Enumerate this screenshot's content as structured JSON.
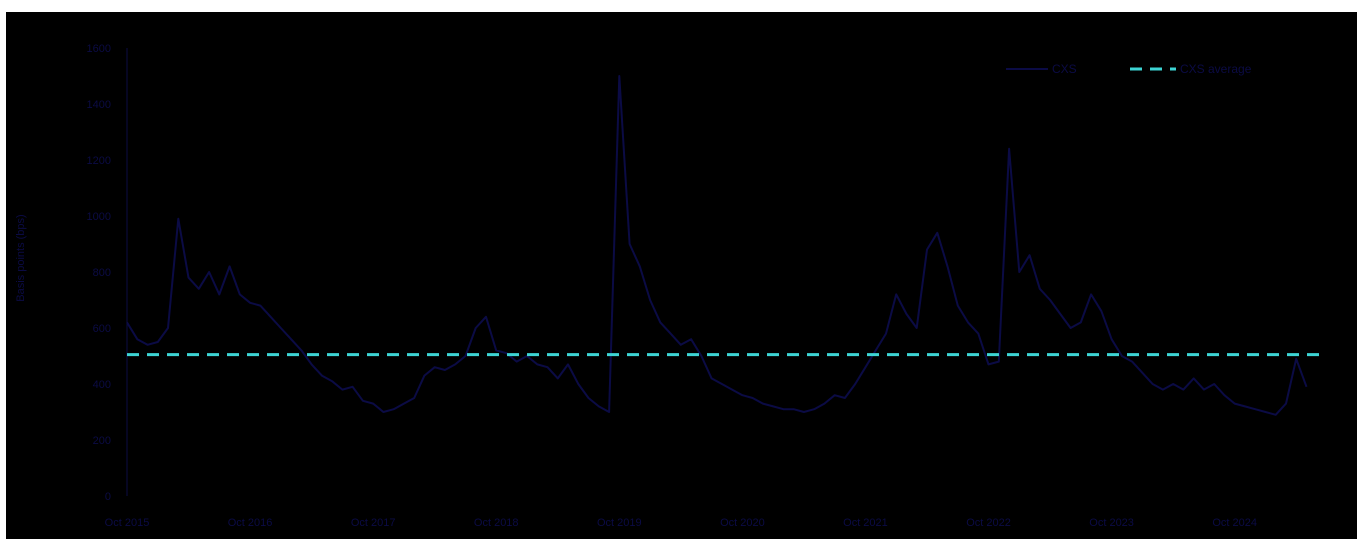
{
  "chart_data": {
    "type": "line",
    "ylabel": "Basis points (bps)",
    "ylim": [
      0,
      1600
    ],
    "y_ticks": [
      "0",
      "200",
      "400",
      "600",
      "800",
      "1000",
      "1200",
      "1400",
      "1600"
    ],
    "y_tick_values": [
      0,
      200,
      400,
      600,
      800,
      1000,
      1200,
      1400,
      1600
    ],
    "x_ticks": [
      "Oct 2015",
      "Oct 2016",
      "Oct 2017",
      "Oct 2018",
      "Oct 2019",
      "Oct 2020",
      "Oct 2021",
      "Oct 2022",
      "Oct 2023",
      "Oct 2024"
    ],
    "x_tick_values": [
      "2015-10",
      "2016-10",
      "2017-10",
      "2018-10",
      "2019-10",
      "2020-10",
      "2021-10",
      "2022-10",
      "2023-10",
      "2024-10"
    ],
    "xlim": [
      "2015-10",
      "2025-07"
    ],
    "grid": false,
    "legend_position": "top-right",
    "series": [
      {
        "name": "CXS",
        "color": "#0b0b45",
        "style": "solid",
        "x": [
          "2015-10",
          "2015-11",
          "2015-12",
          "2016-01",
          "2016-02",
          "2016-03",
          "2016-04",
          "2016-05",
          "2016-06",
          "2016-07",
          "2016-08",
          "2016-09",
          "2016-10",
          "2016-11",
          "2016-12",
          "2017-01",
          "2017-02",
          "2017-03",
          "2017-04",
          "2017-05",
          "2017-06",
          "2017-07",
          "2017-08",
          "2017-09",
          "2017-10",
          "2017-11",
          "2017-12",
          "2018-01",
          "2018-02",
          "2018-03",
          "2018-04",
          "2018-05",
          "2018-06",
          "2018-07",
          "2018-08",
          "2018-09",
          "2018-10",
          "2018-11",
          "2018-12",
          "2019-01",
          "2019-02",
          "2019-03",
          "2019-04",
          "2019-05",
          "2019-06",
          "2019-07",
          "2019-08",
          "2019-09",
          "2019-10",
          "2019-11",
          "2019-12",
          "2020-01",
          "2020-02",
          "2020-03",
          "2020-04",
          "2020-05",
          "2020-06",
          "2020-07",
          "2020-08",
          "2020-09",
          "2020-10",
          "2020-11",
          "2020-12",
          "2021-01",
          "2021-02",
          "2021-03",
          "2021-04",
          "2021-05",
          "2021-06",
          "2021-07",
          "2021-08",
          "2021-09",
          "2021-10",
          "2021-11",
          "2021-12",
          "2022-01",
          "2022-02",
          "2022-03",
          "2022-04",
          "2022-05",
          "2022-06",
          "2022-07",
          "2022-08",
          "2022-09",
          "2022-10",
          "2022-11",
          "2022-12",
          "2023-01",
          "2023-02",
          "2023-03",
          "2023-04",
          "2023-05",
          "2023-06",
          "2023-07",
          "2023-08",
          "2023-09",
          "2023-10",
          "2023-11",
          "2023-12",
          "2024-01",
          "2024-02",
          "2024-03",
          "2024-04",
          "2024-05",
          "2024-06",
          "2024-07",
          "2024-08",
          "2024-09",
          "2024-10",
          "2024-11",
          "2024-12",
          "2025-01",
          "2025-02",
          "2025-03",
          "2025-04",
          "2025-05"
        ],
        "y": [
          620,
          560,
          540,
          550,
          600,
          990,
          780,
          740,
          800,
          720,
          820,
          720,
          690,
          680,
          640,
          600,
          560,
          520,
          470,
          430,
          410,
          380,
          390,
          340,
          330,
          300,
          310,
          330,
          350,
          430,
          460,
          450,
          470,
          500,
          600,
          640,
          520,
          510,
          480,
          500,
          470,
          460,
          420,
          470,
          400,
          350,
          320,
          300,
          1500,
          900,
          820,
          700,
          620,
          580,
          540,
          560,
          500,
          420,
          400,
          380,
          360,
          350,
          330,
          320,
          310,
          310,
          300,
          310,
          330,
          360,
          350,
          400,
          460,
          520,
          580,
          720,
          650,
          600,
          880,
          940,
          820,
          680,
          620,
          580,
          470,
          480,
          1240,
          800,
          860,
          740,
          700,
          650,
          600,
          620,
          720,
          660,
          560,
          500,
          480,
          440,
          400,
          380,
          400,
          380,
          420,
          380,
          400,
          360,
          330,
          320,
          310,
          300,
          290,
          330,
          490,
          390
        ]
      },
      {
        "name": "CXS average",
        "color": "#3dd4d4",
        "style": "dashed",
        "value": 505
      }
    ]
  }
}
